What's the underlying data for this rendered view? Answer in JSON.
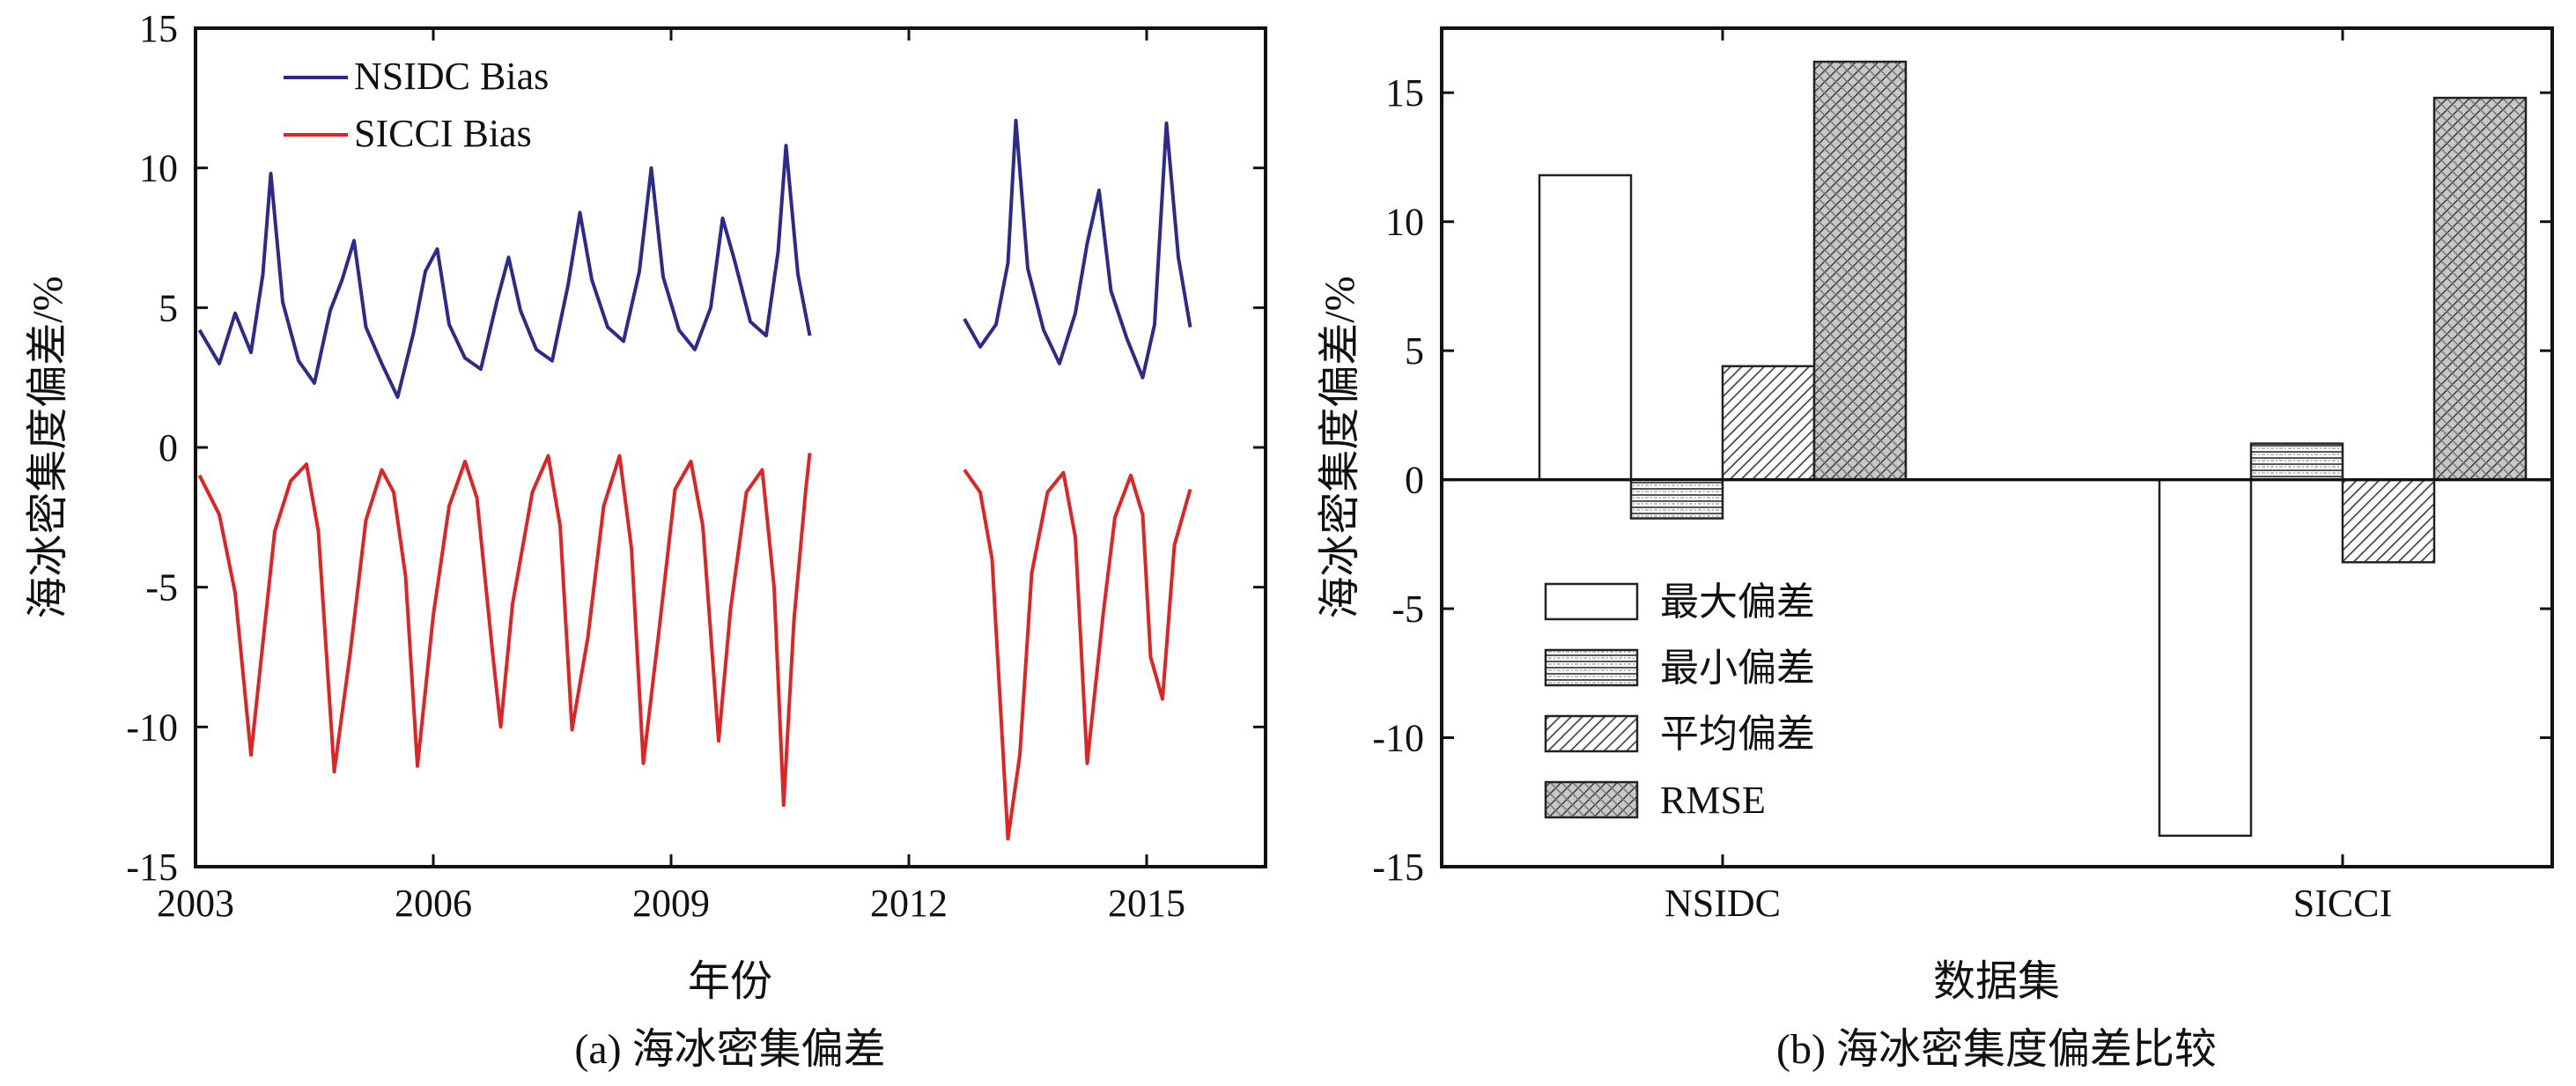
{
  "chart_data": [
    {
      "type": "line",
      "caption": "(a) 海冰密集偏差",
      "xlabel": "年份",
      "ylabel": "海冰密集度偏差/%",
      "xlim": [
        2003,
        2016.5
      ],
      "ylim": [
        -15,
        15
      ],
      "xticks": [
        2003,
        2006,
        2009,
        2012,
        2015
      ],
      "yticks": [
        15,
        10,
        5,
        0,
        -5,
        -10,
        -15
      ],
      "legend_position": "top-left",
      "series": [
        {
          "name": "NSIDC Bias",
          "color": "#2e2a8c",
          "points": [
            [
              2003.05,
              4.2
            ],
            [
              2003.3,
              3.0
            ],
            [
              2003.5,
              4.8
            ],
            [
              2003.7,
              3.4
            ],
            [
              2003.85,
              6.2
            ],
            [
              2003.95,
              9.8
            ],
            [
              2004.1,
              5.2
            ],
            [
              2004.3,
              3.1
            ],
            [
              2004.5,
              2.3
            ],
            [
              2004.7,
              4.9
            ],
            [
              2004.85,
              6.0
            ],
            [
              2005.0,
              7.4
            ],
            [
              2005.15,
              4.3
            ],
            [
              2005.35,
              3.0
            ],
            [
              2005.55,
              1.8
            ],
            [
              2005.75,
              4.1
            ],
            [
              2005.9,
              6.3
            ],
            [
              2006.05,
              7.1
            ],
            [
              2006.2,
              4.4
            ],
            [
              2006.4,
              3.2
            ],
            [
              2006.6,
              2.8
            ],
            [
              2006.8,
              5.2
            ],
            [
              2006.95,
              6.8
            ],
            [
              2007.1,
              4.9
            ],
            [
              2007.3,
              3.5
            ],
            [
              2007.5,
              3.1
            ],
            [
              2007.7,
              5.8
            ],
            [
              2007.85,
              8.4
            ],
            [
              2008.0,
              6.0
            ],
            [
              2008.2,
              4.3
            ],
            [
              2008.4,
              3.8
            ],
            [
              2008.6,
              6.3
            ],
            [
              2008.75,
              10.0
            ],
            [
              2008.9,
              6.1
            ],
            [
              2009.1,
              4.2
            ],
            [
              2009.3,
              3.5
            ],
            [
              2009.5,
              5.0
            ],
            [
              2009.65,
              8.2
            ],
            [
              2009.8,
              6.7
            ],
            [
              2010.0,
              4.5
            ],
            [
              2010.2,
              4.0
            ],
            [
              2010.35,
              7.0
            ],
            [
              2010.45,
              10.8
            ],
            [
              2010.6,
              6.2
            ],
            [
              2010.75,
              4.0
            ],
            [
              null,
              null
            ],
            [
              2012.7,
              4.6
            ],
            [
              2012.9,
              3.6
            ],
            [
              2013.1,
              4.4
            ],
            [
              2013.25,
              6.6
            ],
            [
              2013.35,
              11.7
            ],
            [
              2013.5,
              6.4
            ],
            [
              2013.7,
              4.2
            ],
            [
              2013.9,
              3.0
            ],
            [
              2014.1,
              4.8
            ],
            [
              2014.25,
              7.3
            ],
            [
              2014.4,
              9.2
            ],
            [
              2014.55,
              5.6
            ],
            [
              2014.75,
              3.9
            ],
            [
              2014.95,
              2.5
            ],
            [
              2015.1,
              4.4
            ],
            [
              2015.25,
              11.6
            ],
            [
              2015.4,
              6.8
            ],
            [
              2015.55,
              4.3
            ]
          ]
        },
        {
          "name": "SICCI Bias",
          "color": "#e02424",
          "points": [
            [
              2003.05,
              -1.0
            ],
            [
              2003.3,
              -2.4
            ],
            [
              2003.5,
              -5.2
            ],
            [
              2003.7,
              -11.0
            ],
            [
              2003.85,
              -7.0
            ],
            [
              2004.0,
              -3.0
            ],
            [
              2004.2,
              -1.2
            ],
            [
              2004.4,
              -0.6
            ],
            [
              2004.55,
              -3.0
            ],
            [
              2004.75,
              -11.6
            ],
            [
              2004.95,
              -7.4
            ],
            [
              2005.15,
              -2.6
            ],
            [
              2005.35,
              -0.8
            ],
            [
              2005.5,
              -1.6
            ],
            [
              2005.65,
              -4.6
            ],
            [
              2005.8,
              -11.4
            ],
            [
              2006.0,
              -6.0
            ],
            [
              2006.2,
              -2.1
            ],
            [
              2006.4,
              -0.5
            ],
            [
              2006.55,
              -1.8
            ],
            [
              2006.75,
              -7.4
            ],
            [
              2006.85,
              -10.0
            ],
            [
              2007.0,
              -5.6
            ],
            [
              2007.25,
              -1.6
            ],
            [
              2007.45,
              -0.3
            ],
            [
              2007.6,
              -2.8
            ],
            [
              2007.75,
              -10.1
            ],
            [
              2007.95,
              -6.8
            ],
            [
              2008.15,
              -2.1
            ],
            [
              2008.35,
              -0.3
            ],
            [
              2008.5,
              -3.6
            ],
            [
              2008.65,
              -11.3
            ],
            [
              2008.85,
              -6.5
            ],
            [
              2009.05,
              -1.5
            ],
            [
              2009.25,
              -0.5
            ],
            [
              2009.4,
              -2.8
            ],
            [
              2009.6,
              -10.5
            ],
            [
              2009.75,
              -5.8
            ],
            [
              2009.95,
              -1.6
            ],
            [
              2010.15,
              -0.8
            ],
            [
              2010.3,
              -5.0
            ],
            [
              2010.42,
              -12.8
            ],
            [
              2010.55,
              -6.2
            ],
            [
              2010.7,
              -1.5
            ],
            [
              2010.75,
              -0.2
            ],
            [
              null,
              null
            ],
            [
              2012.7,
              -0.8
            ],
            [
              2012.9,
              -1.6
            ],
            [
              2013.05,
              -4.0
            ],
            [
              2013.25,
              -14.0
            ],
            [
              2013.4,
              -11.0
            ],
            [
              2013.55,
              -4.5
            ],
            [
              2013.75,
              -1.6
            ],
            [
              2013.95,
              -0.9
            ],
            [
              2014.1,
              -3.2
            ],
            [
              2014.25,
              -11.3
            ],
            [
              2014.45,
              -6.0
            ],
            [
              2014.6,
              -2.5
            ],
            [
              2014.8,
              -1.0
            ],
            [
              2014.95,
              -2.4
            ],
            [
              2015.05,
              -7.5
            ],
            [
              2015.2,
              -9.0
            ],
            [
              2015.35,
              -3.5
            ],
            [
              2015.55,
              -1.5
            ]
          ]
        }
      ]
    },
    {
      "type": "bar",
      "caption": "(b) 海冰密集度偏差比较",
      "xlabel": "数据集",
      "ylabel": "海冰密集度偏差/%",
      "ylim": [
        -15,
        17.5
      ],
      "yticks": [
        15,
        10,
        5,
        0,
        -5,
        -10,
        -15
      ],
      "categories": [
        "NSIDC",
        "SICCI"
      ],
      "legend_position": "bottom-left",
      "series": [
        {
          "name": "最大偏差",
          "pattern": "none",
          "values": [
            11.8,
            -13.8
          ]
        },
        {
          "name": "最小偏差",
          "pattern": "horizontal-lines",
          "values": [
            -1.5,
            1.4
          ]
        },
        {
          "name": "平均偏差",
          "pattern": "diagonal-lines",
          "values": [
            4.4,
            -3.2
          ]
        },
        {
          "name": "RMSE",
          "pattern": "cross-hatch",
          "values": [
            16.2,
            14.8
          ]
        }
      ]
    }
  ]
}
